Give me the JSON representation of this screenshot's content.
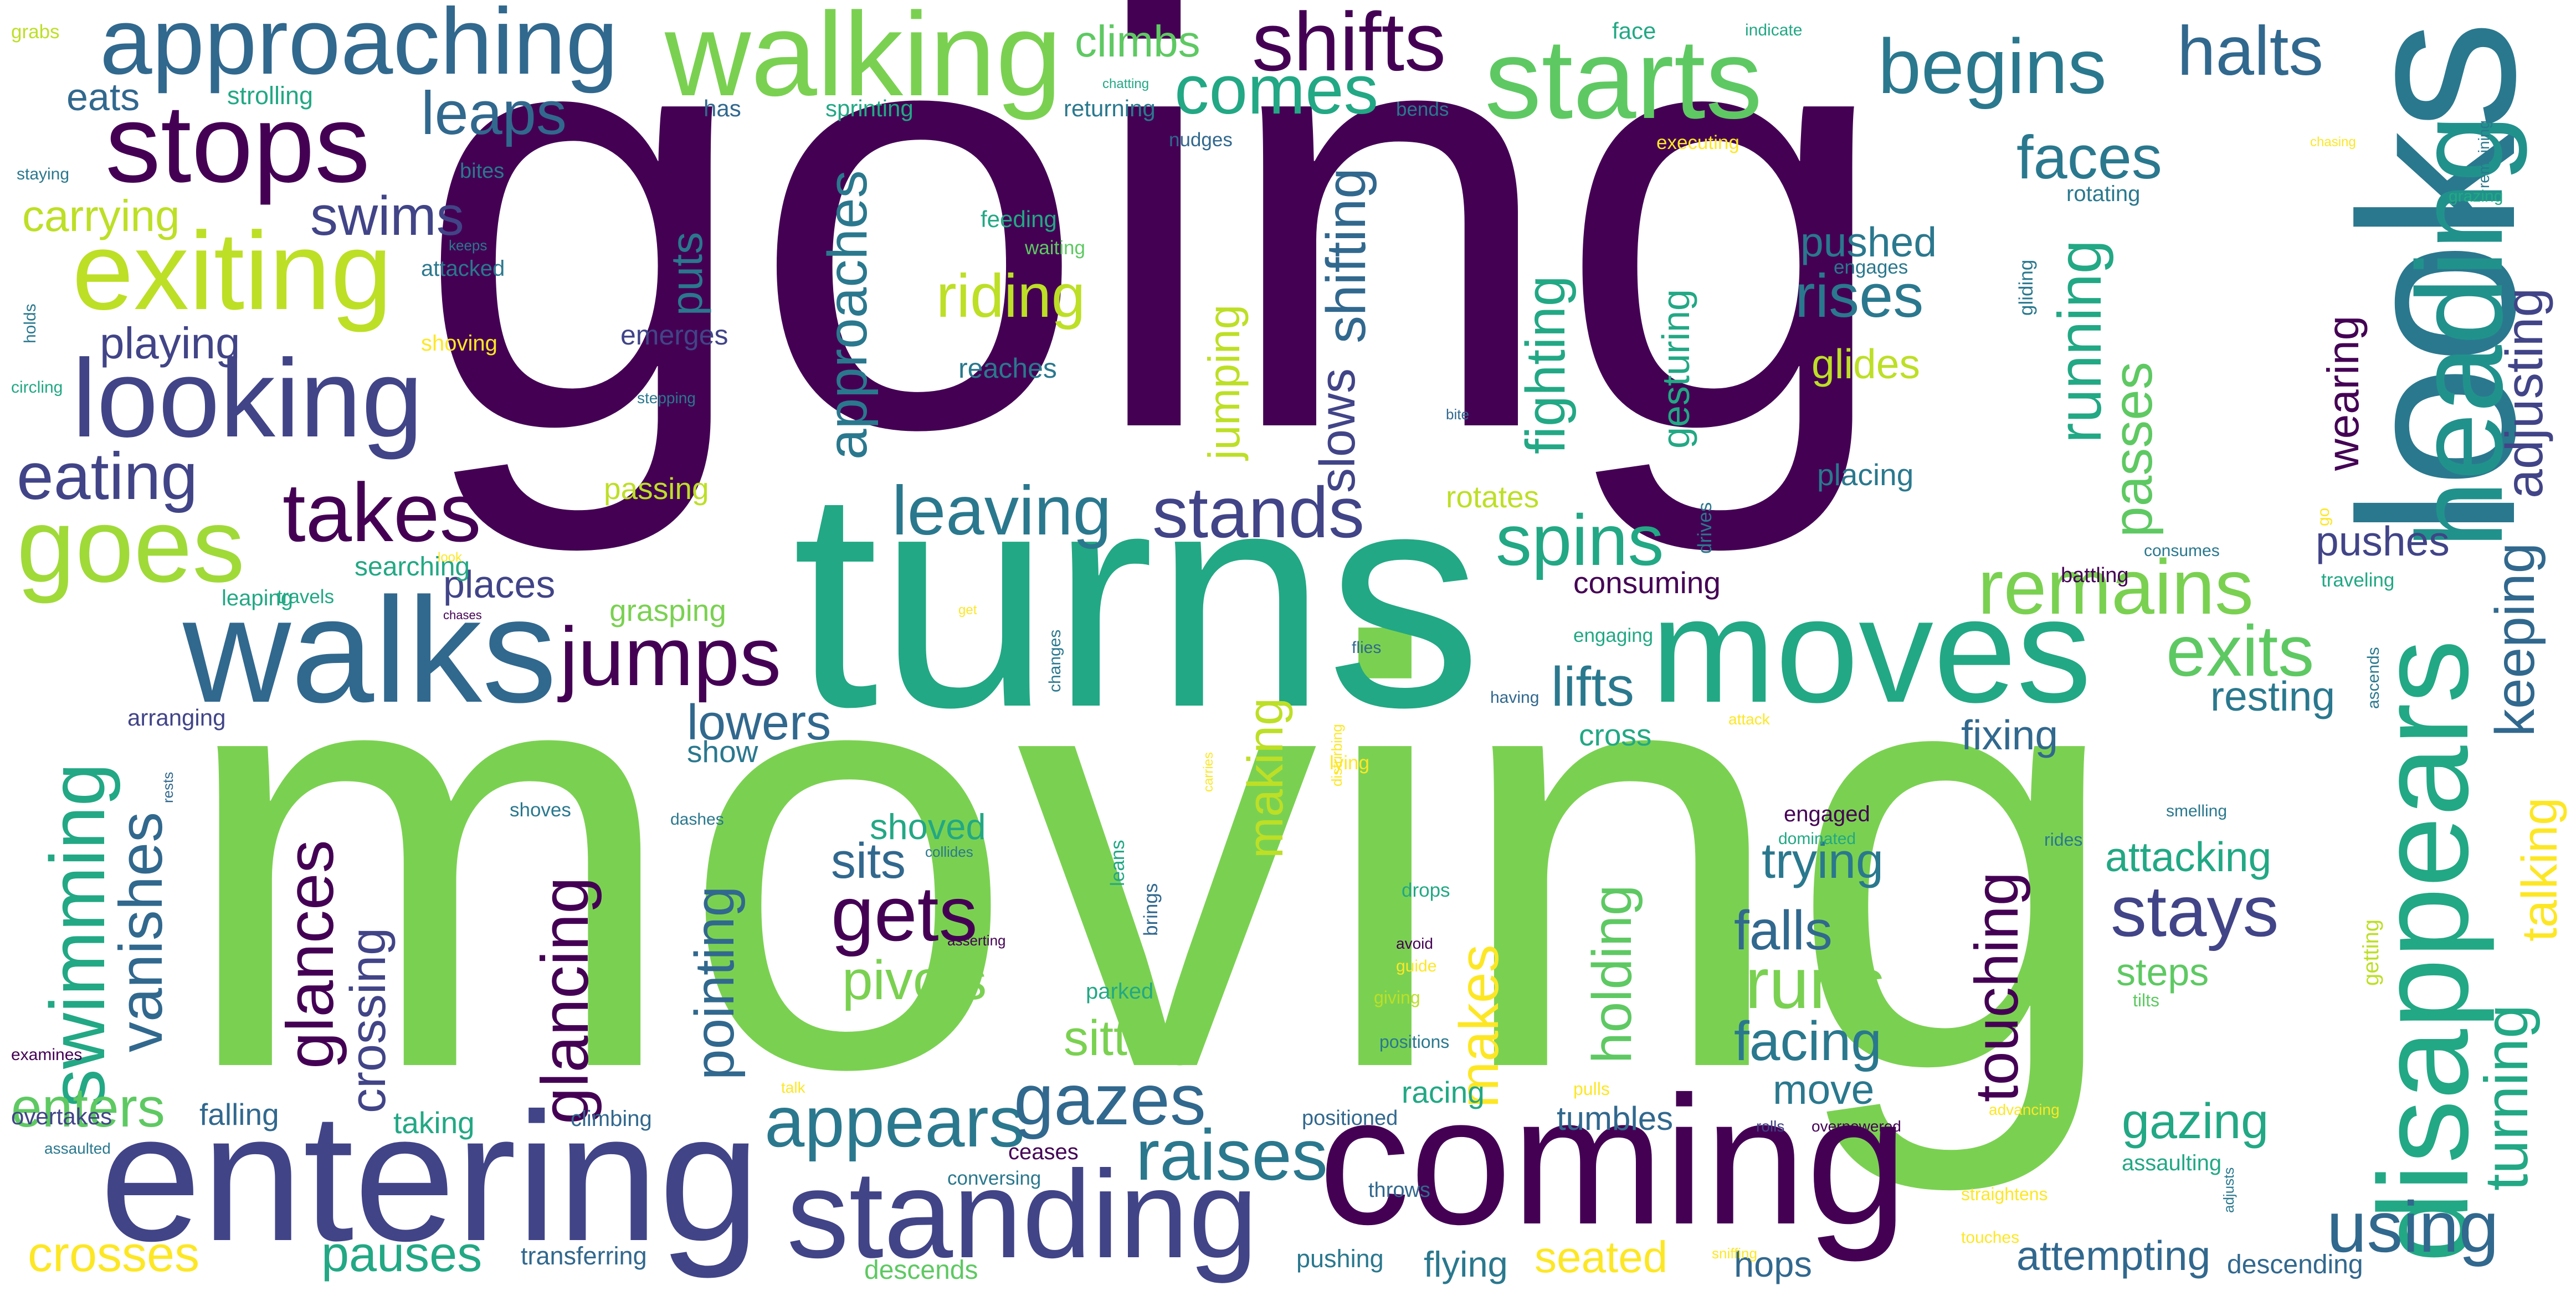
{
  "words": [
    {
      "text": "going",
      "color": "#440154"
    },
    {
      "text": "moving",
      "color": "#7ad151"
    },
    {
      "text": "turns",
      "color": "#22a884"
    },
    {
      "text": "looks",
      "color": "#2a788e"
    },
    {
      "text": "coming",
      "color": "#440154"
    },
    {
      "text": "entering",
      "color": "#414487"
    },
    {
      "text": "moves",
      "color": "#22a884"
    },
    {
      "text": "walks",
      "color": "#31688e"
    },
    {
      "text": "disappears",
      "color": "#22a884"
    },
    {
      "text": "heading",
      "color": "#21918c"
    },
    {
      "text": "standing",
      "color": "#414487"
    },
    {
      "text": "walking",
      "color": "#7ad151"
    },
    {
      "text": "starts",
      "color": "#5ec962"
    },
    {
      "text": "looking",
      "color": "#414487"
    },
    {
      "text": "stops",
      "color": "#440154"
    },
    {
      "text": "approaching",
      "color": "#31688e"
    },
    {
      "text": "exiting",
      "color": "#bddf26"
    },
    {
      "text": "goes",
      "color": "#a0da39"
    },
    {
      "text": "shifts",
      "color": "#440154"
    },
    {
      "text": "begins",
      "color": "#2a788e"
    },
    {
      "text": "halts",
      "color": "#31688e"
    },
    {
      "text": "comes",
      "color": "#22a884"
    },
    {
      "text": "takes",
      "color": "#440154"
    },
    {
      "text": "jumps",
      "color": "#440154"
    },
    {
      "text": "remains",
      "color": "#7ad151"
    },
    {
      "text": "swimming",
      "color": "#22a884"
    },
    {
      "text": "vanishes",
      "color": "#31688e"
    },
    {
      "text": "gets",
      "color": "#440154"
    },
    {
      "text": "appears",
      "color": "#2a788e"
    },
    {
      "text": "raises",
      "color": "#2a788e"
    },
    {
      "text": "gazes",
      "color": "#31688e"
    },
    {
      "text": "stays",
      "color": "#414487"
    },
    {
      "text": "runs",
      "color": "#7ad151"
    },
    {
      "text": "using",
      "color": "#31688e"
    },
    {
      "text": "spins",
      "color": "#22a884"
    },
    {
      "text": "exits",
      "color": "#5ec962"
    },
    {
      "text": "stands",
      "color": "#414487"
    },
    {
      "text": "leaving",
      "color": "#2a788e"
    },
    {
      "text": "glances",
      "color": "#440154"
    },
    {
      "text": "glancing",
      "color": "#440154"
    },
    {
      "text": "approaches",
      "color": "#2a788e"
    },
    {
      "text": "running",
      "color": "#22a884"
    },
    {
      "text": "passes",
      "color": "#5ec962"
    },
    {
      "text": "eating",
      "color": "#414487"
    },
    {
      "text": "crossing",
      "color": "#414487"
    },
    {
      "text": "pointing",
      "color": "#31688e"
    },
    {
      "text": "makes",
      "color": "#fde725"
    },
    {
      "text": "holding",
      "color": "#5ec962"
    },
    {
      "text": "touching",
      "color": "#440154"
    },
    {
      "text": "turning",
      "color": "#22a884"
    },
    {
      "text": "talking",
      "color": "#fde725"
    },
    {
      "text": "keeping",
      "color": "#31688e"
    },
    {
      "text": "adjusting",
      "color": "#414487"
    },
    {
      "text": "wearing",
      "color": "#440154"
    },
    {
      "text": "fighting",
      "color": "#22a884"
    },
    {
      "text": "shifting",
      "color": "#31688e"
    },
    {
      "text": "slows",
      "color": "#414487"
    },
    {
      "text": "making",
      "color": "#bddf26"
    },
    {
      "text": "jumping",
      "color": "#bddf26"
    },
    {
      "text": "gesturing",
      "color": "#22a884"
    },
    {
      "text": "faces",
      "color": "#2a788e"
    },
    {
      "text": "rises",
      "color": "#2a788e"
    },
    {
      "text": "leaps",
      "color": "#31688e"
    },
    {
      "text": "swims",
      "color": "#414487"
    },
    {
      "text": "riding",
      "color": "#bddf26"
    },
    {
      "text": "lifts",
      "color": "#2a788e"
    },
    {
      "text": "falls",
      "color": "#31688e"
    },
    {
      "text": "facing",
      "color": "#2a788e"
    },
    {
      "text": "pivots",
      "color": "#7ad151"
    },
    {
      "text": "sitting",
      "color": "#7ad151"
    },
    {
      "text": "crosses",
      "color": "#fde725"
    },
    {
      "text": "pauses",
      "color": "#22a884"
    },
    {
      "text": "enters",
      "color": "#5ec962"
    },
    {
      "text": "seated",
      "color": "#fde725"
    },
    {
      "text": "attempting",
      "color": "#31688e"
    },
    {
      "text": "gazing",
      "color": "#22a884"
    },
    {
      "text": "attacking",
      "color": "#22a884"
    },
    {
      "text": "trying",
      "color": "#2a788e"
    },
    {
      "text": "sits",
      "color": "#31688e"
    },
    {
      "text": "move",
      "color": "#2a788e"
    },
    {
      "text": "lowers",
      "color": "#31688e"
    },
    {
      "text": "pushes",
      "color": "#414487"
    },
    {
      "text": "resting",
      "color": "#2a788e"
    },
    {
      "text": "fixing",
      "color": "#31688e"
    },
    {
      "text": "steps",
      "color": "#5ec962"
    },
    {
      "text": "playing",
      "color": "#414487"
    },
    {
      "text": "carrying",
      "color": "#bddf26"
    },
    {
      "text": "eats",
      "color": "#31688e"
    },
    {
      "text": "places",
      "color": "#414487"
    },
    {
      "text": "pushed",
      "color": "#2a788e"
    },
    {
      "text": "glides",
      "color": "#bddf26"
    },
    {
      "text": "puts",
      "color": "#2a788e"
    },
    {
      "text": "climbs",
      "color": "#5ec962"
    },
    {
      "text": "tumbles",
      "color": "#31688e"
    },
    {
      "text": "flying",
      "color": "#2a788e"
    },
    {
      "text": "hops",
      "color": "#31688e"
    },
    {
      "text": "shoved",
      "color": "#22a884"
    },
    {
      "text": "consuming",
      "color": "#440154"
    },
    {
      "text": "placing",
      "color": "#2a788e"
    },
    {
      "text": "rotates",
      "color": "#bddf26"
    },
    {
      "text": "passing",
      "color": "#bddf26"
    },
    {
      "text": "grasping",
      "color": "#7ad151"
    },
    {
      "text": "searching",
      "color": "#22a884"
    },
    {
      "text": "reaches",
      "color": "#2a788e"
    },
    {
      "text": "emerges",
      "color": "#414487"
    },
    {
      "text": "taking",
      "color": "#22a884"
    },
    {
      "text": "falling",
      "color": "#31688e"
    },
    {
      "text": "show",
      "color": "#2a788e"
    },
    {
      "text": "cross",
      "color": "#22a884"
    },
    {
      "text": "racing",
      "color": "#22a884"
    },
    {
      "text": "descending",
      "color": "#31688e"
    },
    {
      "text": "descends",
      "color": "#5ec962"
    },
    {
      "text": "transferring",
      "color": "#31688e"
    },
    {
      "text": "pushing",
      "color": "#2a788e"
    },
    {
      "text": "overtakes",
      "color": "#414487"
    },
    {
      "text": "arranging",
      "color": "#414487"
    },
    {
      "text": "assaulting",
      "color": "#22a884"
    },
    {
      "text": "strolling",
      "color": "#22a884"
    },
    {
      "text": "sprinting",
      "color": "#22a884"
    },
    {
      "text": "returning",
      "color": "#2a788e"
    },
    {
      "text": "face",
      "color": "#22a884"
    },
    {
      "text": "has",
      "color": "#31688e"
    },
    {
      "text": "feeding",
      "color": "#22a884"
    },
    {
      "text": "waiting",
      "color": "#5ec962"
    },
    {
      "text": "rotating",
      "color": "#2a788e"
    },
    {
      "text": "engaging",
      "color": "#22a884"
    },
    {
      "text": "travels",
      "color": "#22a884"
    },
    {
      "text": "leaping",
      "color": "#22a884"
    },
    {
      "text": "shoving",
      "color": "#fde725"
    },
    {
      "text": "attacked",
      "color": "#2a788e"
    },
    {
      "text": "bites",
      "color": "#2a788e"
    },
    {
      "text": "grabs",
      "color": "#bddf26"
    },
    {
      "text": "staying",
      "color": "#2a788e"
    },
    {
      "text": "holds",
      "color": "#2a788e"
    },
    {
      "text": "circling",
      "color": "#22a884"
    },
    {
      "text": "examines",
      "color": "#440154"
    },
    {
      "text": "assaulted",
      "color": "#2a788e"
    },
    {
      "text": "climbing",
      "color": "#31688e"
    },
    {
      "text": "ceases",
      "color": "#440154"
    },
    {
      "text": "conversing",
      "color": "#2a788e"
    },
    {
      "text": "positioned",
      "color": "#31688e"
    },
    {
      "text": "throws",
      "color": "#31688e"
    },
    {
      "text": "engaged",
      "color": "#440154"
    },
    {
      "text": "dominated",
      "color": "#22a884"
    },
    {
      "text": "rides",
      "color": "#2a788e"
    },
    {
      "text": "tilts",
      "color": "#5ec962"
    },
    {
      "text": "getting",
      "color": "#bddf26"
    },
    {
      "text": "smelling",
      "color": "#2a788e"
    },
    {
      "text": "drops",
      "color": "#22a884"
    },
    {
      "text": "positions",
      "color": "#2a788e"
    },
    {
      "text": "giving",
      "color": "#bddf26"
    },
    {
      "text": "guide",
      "color": "#fde725"
    },
    {
      "text": "avoid",
      "color": "#440154"
    },
    {
      "text": "pulls",
      "color": "#fde725"
    },
    {
      "text": "talk",
      "color": "#fde725"
    },
    {
      "text": "rolls",
      "color": "#414487"
    },
    {
      "text": "overpowered",
      "color": "#440154"
    },
    {
      "text": "advancing",
      "color": "#fde725"
    },
    {
      "text": "straightens",
      "color": "#fde725"
    },
    {
      "text": "touches",
      "color": "#fde725"
    },
    {
      "text": "sniffing",
      "color": "#fde725"
    },
    {
      "text": "adjusts",
      "color": "#2a788e"
    },
    {
      "text": "indicate",
      "color": "#22a884"
    },
    {
      "text": "chatting",
      "color": "#22a884"
    },
    {
      "text": "bends",
      "color": "#2a788e"
    },
    {
      "text": "nudges",
      "color": "#31688e"
    },
    {
      "text": "executing",
      "color": "#fde725"
    },
    {
      "text": "chasing",
      "color": "#fde725"
    },
    {
      "text": "remaining",
      "color": "#2a788e"
    },
    {
      "text": "grazing",
      "color": "#22a884"
    },
    {
      "text": "engages",
      "color": "#2a788e"
    },
    {
      "text": "gliding",
      "color": "#2a788e"
    },
    {
      "text": "stepping",
      "color": "#2a788e"
    },
    {
      "text": "bite",
      "color": "#31688e"
    },
    {
      "text": "drives",
      "color": "#2a788e"
    },
    {
      "text": "consumes",
      "color": "#2a788e"
    },
    {
      "text": "go",
      "color": "#fde725"
    },
    {
      "text": "traveling",
      "color": "#22a884"
    },
    {
      "text": "battling",
      "color": "#440154"
    },
    {
      "text": "ascends",
      "color": "#2a788e"
    },
    {
      "text": "having",
      "color": "#31688e"
    },
    {
      "text": "attack",
      "color": "#fde725"
    },
    {
      "text": "flies",
      "color": "#31688e"
    },
    {
      "text": "disturbing",
      "color": "#fde725"
    },
    {
      "text": "lying",
      "color": "#fde725"
    },
    {
      "text": "carries",
      "color": "#fde725"
    },
    {
      "text": "changes",
      "color": "#2a788e"
    },
    {
      "text": "get",
      "color": "#fde725"
    },
    {
      "text": "look",
      "color": "#fde725"
    },
    {
      "text": "chases",
      "color": "#440154"
    },
    {
      "text": "keeps",
      "color": "#2a788e"
    },
    {
      "text": "rests",
      "color": "#31688e"
    },
    {
      "text": "shoves",
      "color": "#2a788e"
    },
    {
      "text": "dashes",
      "color": "#2a788e"
    },
    {
      "text": "collides",
      "color": "#2a788e"
    },
    {
      "text": "asserting",
      "color": "#440154"
    },
    {
      "text": "brings",
      "color": "#31688e"
    },
    {
      "text": "leans",
      "color": "#22a884"
    },
    {
      "text": "parked",
      "color": "#22a884"
    }
  ]
}
